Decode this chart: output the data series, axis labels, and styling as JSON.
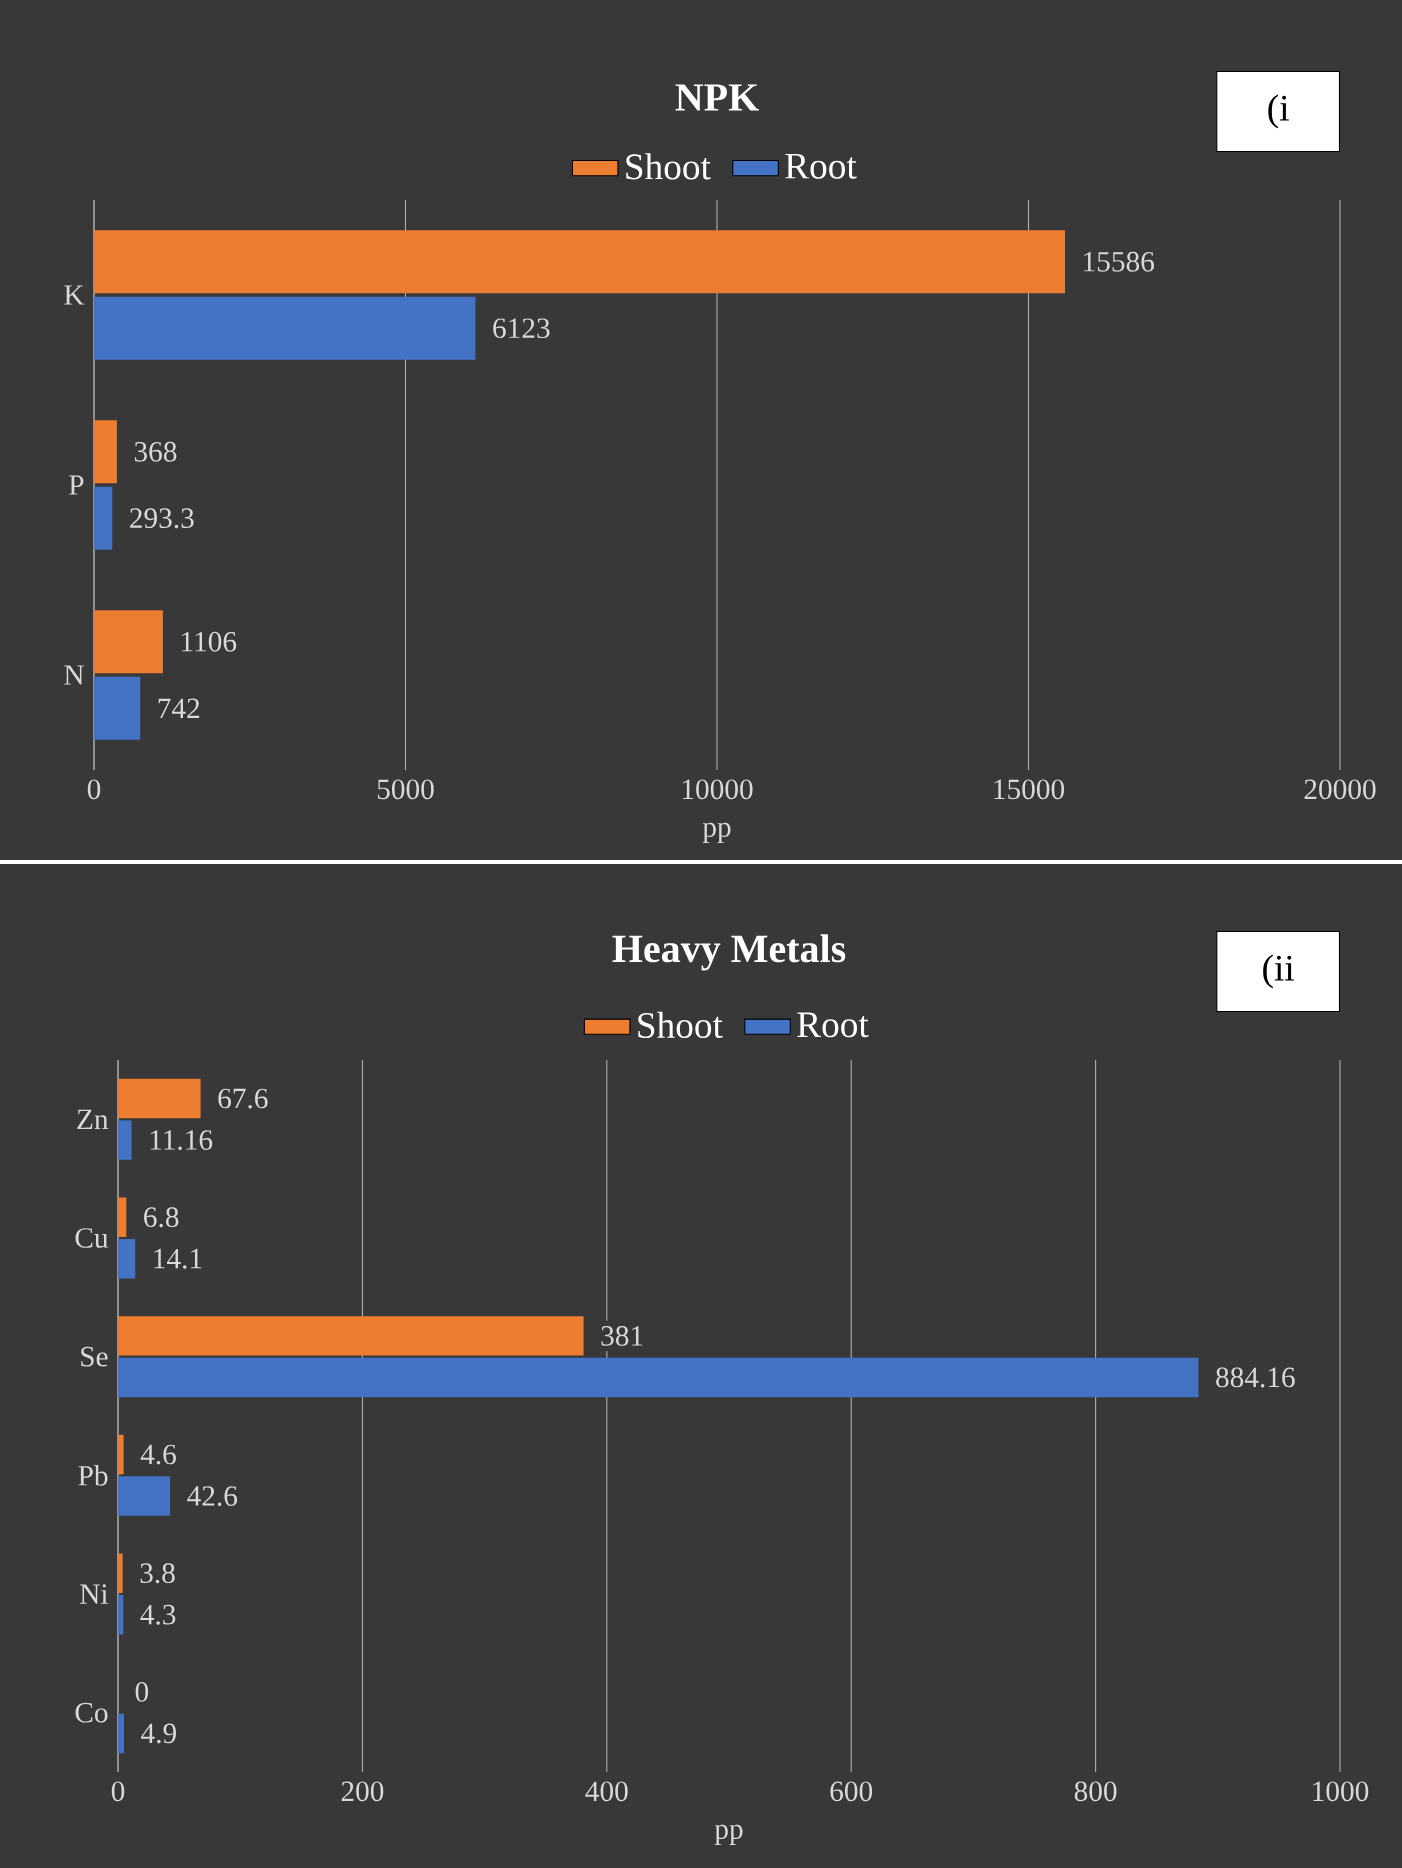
{
  "chart_data": [
    {
      "type": "bar",
      "orientation": "horizontal",
      "title": "NPK",
      "xlabel": "pp",
      "categories": [
        "K",
        "P",
        "N"
      ],
      "series": [
        {
          "name": "Shoot",
          "color": "#ed7d31",
          "values": [
            15586,
            368,
            1106
          ]
        },
        {
          "name": "Root",
          "color": "#4472c4",
          "values": [
            6123,
            293.3,
            742
          ]
        }
      ],
      "xlim": [
        0,
        20000
      ],
      "xticks": [
        0,
        5000,
        10000,
        15000,
        20000
      ],
      "grid": "x",
      "legend": "top",
      "data_labels": true,
      "annotations": [
        "(i"
      ]
    },
    {
      "type": "bar",
      "orientation": "horizontal",
      "title": "Heavy Metals",
      "xlabel": "pp",
      "categories": [
        "Zn",
        "Cu",
        "Se",
        "Pb",
        "Ni",
        "Co"
      ],
      "series": [
        {
          "name": "Shoot",
          "color": "#ed7d31",
          "values": [
            67.6,
            6.8,
            381,
            4.6,
            3.8,
            0
          ]
        },
        {
          "name": "Root",
          "color": "#4472c4",
          "values": [
            11.16,
            14.1,
            884.16,
            42.6,
            4.3,
            4.9
          ]
        }
      ],
      "xlim": [
        0,
        1000
      ],
      "xticks": [
        0,
        200,
        400,
        600,
        800,
        1000
      ],
      "grid": "x",
      "legend": "top",
      "data_labels": true,
      "annotations": [
        "(ii"
      ]
    }
  ]
}
